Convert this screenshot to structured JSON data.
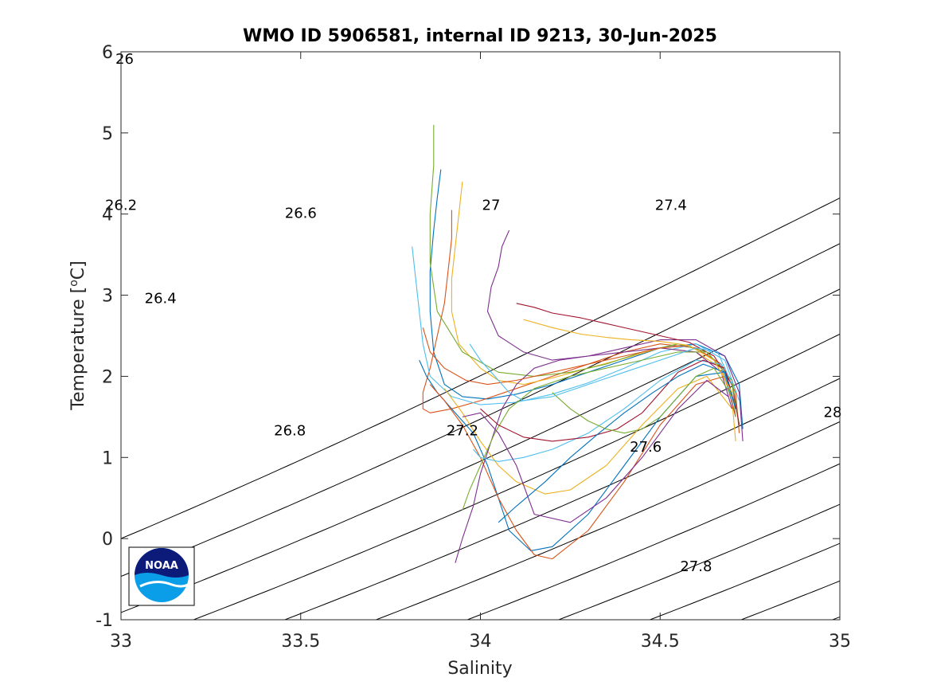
{
  "chart_data": {
    "type": "line",
    "title": "WMO ID 5906581, internal ID 9213, 30-Jun-2025",
    "xlabel": "Salinity",
    "ylabel_main": "Temperature [",
    "ylabel_sup": "o",
    "ylabel_end": "C]",
    "xlim": [
      33,
      35
    ],
    "ylim": [
      -1,
      6
    ],
    "x_ticks": [
      33,
      33.5,
      34,
      34.5,
      35
    ],
    "x_tick_labels": [
      "33",
      "33.5",
      "34",
      "34.5",
      "35"
    ],
    "y_ticks": [
      -1,
      0,
      1,
      2,
      3,
      4,
      5,
      6
    ],
    "y_tick_labels": [
      "-1",
      "0",
      "1",
      "2",
      "3",
      "4",
      "5",
      "6"
    ],
    "grid": false,
    "legend": "none",
    "isopycnals": [
      {
        "sigma": 26.0,
        "label": "26",
        "label_at": [
          33.01,
          5.9
        ]
      },
      {
        "sigma": 26.2,
        "label": "26.2",
        "label_at": [
          33.0,
          4.1
        ]
      },
      {
        "sigma": 26.4,
        "label": "26.4",
        "label_at": [
          33.11,
          2.95
        ]
      },
      {
        "sigma": 26.6,
        "label": "26.6",
        "label_at": [
          33.5,
          4.0
        ]
      },
      {
        "sigma": 26.8,
        "label": "26.8",
        "label_at": [
          33.47,
          1.32
        ]
      },
      {
        "sigma": 27.0,
        "label": "27",
        "label_at": [
          34.03,
          4.1
        ]
      },
      {
        "sigma": 27.2,
        "label": "27.2",
        "label_at": [
          33.95,
          1.32
        ]
      },
      {
        "sigma": 27.4,
        "label": "27.4",
        "label_at": [
          34.53,
          4.1
        ]
      },
      {
        "sigma": 27.6,
        "label": "27.6",
        "label_at": [
          34.46,
          1.12
        ]
      },
      {
        "sigma": 27.8,
        "label": "27.8",
        "label_at": [
          34.6,
          -0.35
        ]
      },
      {
        "sigma": 28.0,
        "label": "28",
        "label_at": [
          34.98,
          1.55
        ]
      }
    ],
    "profile_colors": [
      "#0072BD",
      "#D95319",
      "#EDB120",
      "#7E2F8E",
      "#77AC30",
      "#4DBEEE",
      "#A2142F"
    ],
    "profiles": [
      {
        "x": [
          33.89,
          33.88,
          33.87,
          33.86,
          33.86,
          33.87,
          33.9,
          33.95,
          34.02,
          34.1,
          34.2,
          34.3,
          34.4,
          34.5,
          34.6,
          34.68,
          34.72,
          34.73
        ],
        "y": [
          4.55,
          4.2,
          3.8,
          3.3,
          2.8,
          2.3,
          1.9,
          1.75,
          1.72,
          1.78,
          1.9,
          2.05,
          2.2,
          2.35,
          2.4,
          2.25,
          1.9,
          1.35
        ]
      },
      {
        "x": [
          33.92,
          33.92,
          33.91,
          33.9,
          33.88,
          33.86,
          33.84,
          33.84,
          33.86,
          33.92,
          34.0,
          34.1,
          34.2,
          34.3,
          34.4,
          34.5,
          34.6,
          34.67,
          34.71,
          34.72
        ],
        "y": [
          4.05,
          3.7,
          3.3,
          2.9,
          2.5,
          2.1,
          1.8,
          1.6,
          1.55,
          1.6,
          1.7,
          1.85,
          2.0,
          2.15,
          2.3,
          2.4,
          2.35,
          2.15,
          1.8,
          1.3
        ]
      },
      {
        "x": [
          33.95,
          33.94,
          33.93,
          33.92,
          33.92,
          33.94,
          34.0,
          34.05,
          34.12,
          34.2,
          34.3,
          34.4,
          34.5,
          34.6,
          34.67,
          34.7,
          34.71
        ],
        "y": [
          4.4,
          4.0,
          3.6,
          3.2,
          2.8,
          2.4,
          2.1,
          1.95,
          1.9,
          1.98,
          2.1,
          2.22,
          2.35,
          2.3,
          2.1,
          1.7,
          1.2
        ]
      },
      {
        "x": [
          34.08,
          34.06,
          34.05,
          34.03,
          34.02,
          34.05,
          34.12,
          34.2,
          34.3,
          34.4,
          34.5,
          34.6,
          34.68,
          34.72,
          34.73
        ],
        "y": [
          3.8,
          3.6,
          3.35,
          3.1,
          2.8,
          2.5,
          2.3,
          2.2,
          2.25,
          2.35,
          2.45,
          2.45,
          2.25,
          1.8,
          1.2
        ]
      },
      {
        "x": [
          33.87,
          33.87,
          33.86,
          33.86,
          33.88,
          33.95,
          34.05,
          34.15,
          34.25,
          34.35,
          34.45,
          34.55,
          34.63,
          34.7,
          34.72
        ],
        "y": [
          5.1,
          4.6,
          4.0,
          3.4,
          2.8,
          2.3,
          2.05,
          2.0,
          2.05,
          2.15,
          2.3,
          2.4,
          2.3,
          1.95,
          1.4
        ]
      },
      {
        "x": [
          33.81,
          33.82,
          33.83,
          33.84,
          33.86,
          33.92,
          34.0,
          34.1,
          34.2,
          34.3,
          34.4,
          34.5,
          34.6,
          34.68,
          34.72
        ],
        "y": [
          3.6,
          3.2,
          2.8,
          2.4,
          2.0,
          1.75,
          1.65,
          1.68,
          1.78,
          1.92,
          2.1,
          2.3,
          2.4,
          2.2,
          1.7
        ]
      },
      {
        "x": [
          34.1,
          34.15,
          34.2,
          34.28,
          34.35,
          34.42,
          34.5,
          34.58,
          34.65,
          34.7,
          34.72
        ],
        "y": [
          2.9,
          2.85,
          2.78,
          2.72,
          2.65,
          2.58,
          2.5,
          2.42,
          2.25,
          1.9,
          1.4
        ]
      },
      {
        "x": [
          33.83,
          33.85,
          33.88,
          33.92,
          33.98,
          34.02,
          34.05,
          34.08,
          34.14,
          34.2,
          34.3,
          34.4,
          34.5,
          34.6,
          34.68,
          34.71
        ],
        "y": [
          2.2,
          2.0,
          1.8,
          1.6,
          1.3,
          0.9,
          0.5,
          0.1,
          -0.15,
          -0.1,
          0.3,
          0.9,
          1.5,
          2.0,
          2.05,
          1.5
        ]
      },
      {
        "x": [
          33.86,
          33.9,
          33.95,
          34.0,
          34.05,
          34.1,
          34.15,
          34.2,
          34.3,
          34.4,
          34.5,
          34.6,
          34.68,
          34.71
        ],
        "y": [
          1.9,
          1.7,
          1.4,
          1.0,
          0.5,
          0.1,
          -0.2,
          -0.25,
          0.1,
          0.7,
          1.4,
          1.9,
          2.0,
          1.5
        ]
      },
      {
        "x": [
          33.9,
          33.95,
          34.0,
          34.05,
          34.1,
          34.18,
          34.25,
          34.35,
          34.45,
          34.55,
          34.63,
          34.7
        ],
        "y": [
          1.85,
          1.55,
          1.2,
          0.9,
          0.7,
          0.55,
          0.6,
          0.9,
          1.4,
          1.85,
          2.0,
          1.6
        ]
      },
      {
        "x": [
          33.93,
          33.95,
          33.98,
          34.0,
          34.03,
          34.06,
          34.1,
          34.15,
          34.22,
          34.3,
          34.4,
          34.5,
          34.6,
          34.67,
          34.7
        ],
        "y": [
          -0.3,
          0.0,
          0.4,
          0.8,
          1.2,
          1.6,
          1.9,
          2.1,
          2.2,
          2.25,
          2.3,
          2.35,
          2.3,
          2.05,
          1.6
        ]
      },
      {
        "x": [
          33.95,
          33.97,
          34.0,
          34.04,
          34.08,
          34.15,
          34.25,
          34.35,
          34.45,
          34.55,
          34.63,
          34.7,
          34.71
        ],
        "y": [
          0.35,
          0.6,
          0.9,
          1.3,
          1.6,
          1.85,
          2.0,
          2.1,
          2.2,
          2.3,
          2.3,
          1.95,
          1.5
        ]
      },
      {
        "x": [
          33.98,
          34.0,
          34.05,
          34.12,
          34.2,
          34.3,
          34.4,
          34.5,
          34.6,
          34.67,
          34.7
        ],
        "y": [
          1.1,
          1.0,
          0.95,
          1.0,
          1.1,
          1.3,
          1.6,
          1.95,
          2.2,
          2.15,
          1.7
        ]
      },
      {
        "x": [
          34.0,
          34.05,
          34.12,
          34.2,
          34.3,
          34.38,
          34.45,
          34.5,
          34.55,
          34.62,
          34.68,
          34.71
        ],
        "y": [
          1.6,
          1.4,
          1.25,
          1.2,
          1.25,
          1.35,
          1.55,
          1.8,
          2.05,
          2.2,
          2.1,
          1.6
        ]
      },
      {
        "x": [
          34.05,
          34.1,
          34.18,
          34.25,
          34.33,
          34.4,
          34.48,
          34.55,
          34.62,
          34.68,
          34.71
        ],
        "y": [
          0.2,
          0.4,
          0.7,
          1.0,
          1.3,
          1.55,
          1.8,
          2.0,
          2.15,
          2.05,
          1.6
        ]
      },
      {
        "x": [
          33.84,
          33.86,
          33.9,
          33.96,
          34.02,
          34.1,
          34.2,
          34.3,
          34.4,
          34.5,
          34.58,
          34.65,
          34.7
        ],
        "y": [
          2.6,
          2.3,
          2.1,
          1.95,
          1.9,
          1.95,
          2.05,
          2.15,
          2.25,
          2.35,
          2.38,
          2.2,
          1.8
        ]
      },
      {
        "x": [
          34.12,
          34.2,
          34.28,
          34.35,
          34.42,
          34.5,
          34.58,
          34.65,
          34.7
        ],
        "y": [
          2.7,
          2.6,
          2.52,
          2.48,
          2.45,
          2.43,
          2.38,
          2.2,
          1.8
        ]
      },
      {
        "x": [
          33.95,
          34.0,
          34.05,
          34.1,
          34.15,
          34.25,
          34.35,
          34.45,
          34.55,
          34.63,
          34.69
        ],
        "y": [
          1.5,
          1.55,
          1.3,
          0.9,
          0.3,
          0.2,
          0.5,
          1.0,
          1.6,
          1.95,
          1.75
        ]
      },
      {
        "x": [
          34.2,
          34.25,
          34.3,
          34.35,
          34.4,
          34.45,
          34.5,
          34.55,
          34.6,
          34.65,
          34.7
        ],
        "y": [
          1.8,
          1.6,
          1.45,
          1.35,
          1.3,
          1.35,
          1.5,
          1.75,
          2.0,
          2.1,
          1.75
        ]
      },
      {
        "x": [
          33.97,
          34.0,
          34.04,
          34.08,
          34.12,
          34.2,
          34.3,
          34.4,
          34.5,
          34.6,
          34.66,
          34.7
        ],
        "y": [
          2.4,
          2.2,
          2.0,
          1.8,
          1.7,
          1.75,
          1.9,
          2.05,
          2.2,
          2.35,
          2.3,
          1.9
        ]
      }
    ]
  },
  "logo": {
    "text": "NOAA"
  }
}
